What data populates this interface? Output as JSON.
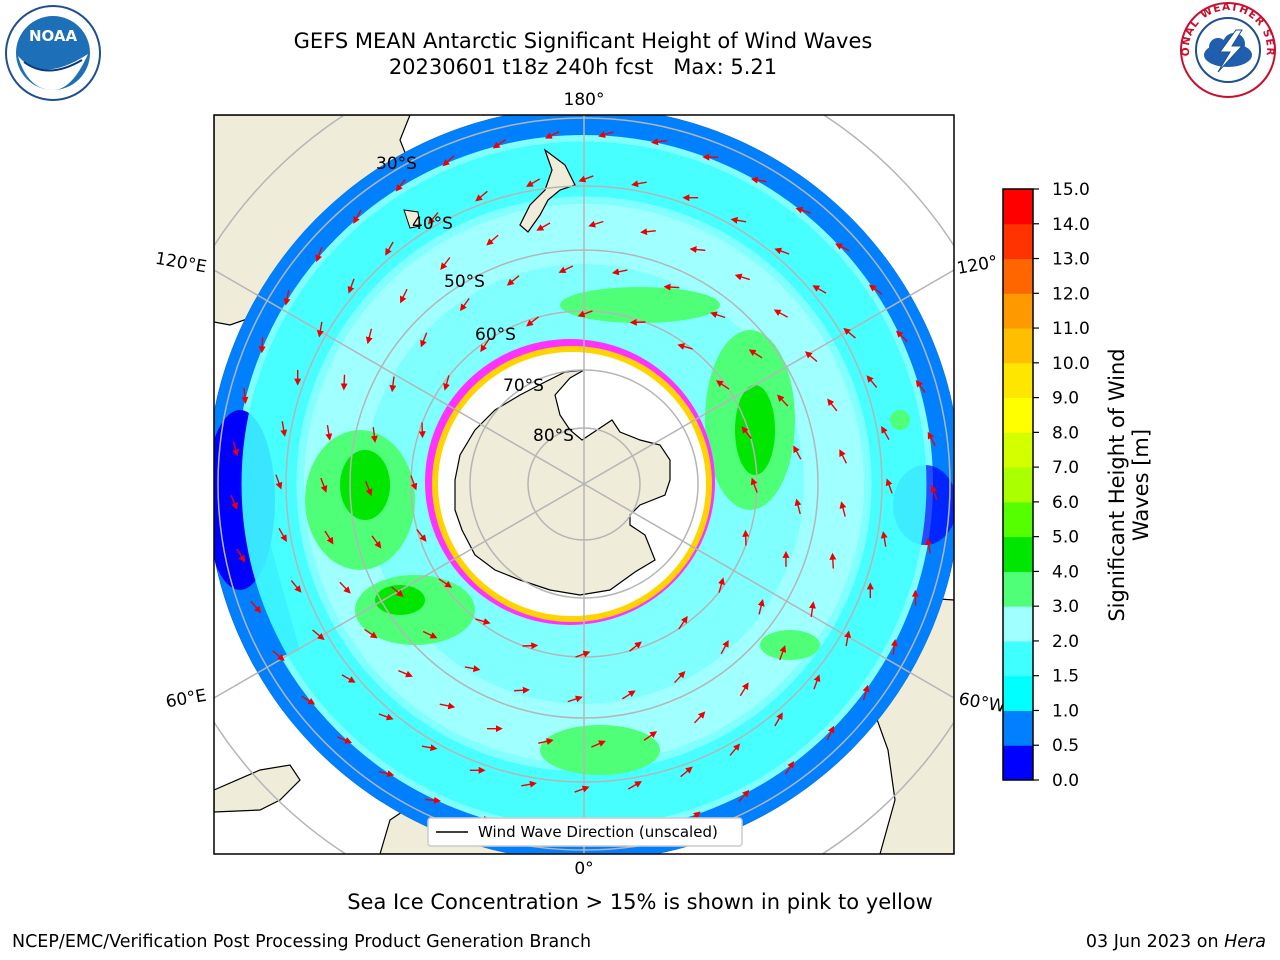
{
  "title_line1": "GEFS MEAN Antarctic Significant Height of Wind Waves",
  "title_line2": "20230601 t18z 240h fcst   Max: 5.21",
  "logos": {
    "left": {
      "text": "NOAA",
      "icon": "noaa-logo-icon"
    },
    "right": {
      "text": "NATIONAL WEATHER SERVICE",
      "icon": "nws-logo-icon"
    }
  },
  "map": {
    "projection": "south-polar-stereographic",
    "meridian_labels": {
      "top": "180°",
      "bottom": "0°",
      "left_upper": "120°E",
      "left_lower": "60°E",
      "right_upper": "120°",
      "right_lower": "60°W"
    },
    "latitude_labels": [
      "30°S",
      "40°S",
      "50°S",
      "60°S",
      "70°S",
      "80°S"
    ],
    "legend_label": "Wind Wave Direction (unscaled)",
    "colors": {
      "land": "#efecda",
      "ice": "#ffffff",
      "ice_edge": [
        "#ff33ff",
        "#ffd400"
      ],
      "vector": "#ee0000",
      "grid": "#b5b5b5"
    }
  },
  "colorbar": {
    "title": "Significant Height of Wind Waves [m]",
    "ticks": [
      "0.0",
      "0.5",
      "1.0",
      "1.5",
      "2.0",
      "3.0",
      "4.0",
      "5.0",
      "6.0",
      "7.0",
      "8.0",
      "9.0",
      "10.0",
      "11.0",
      "12.0",
      "13.0",
      "14.0",
      "15.0"
    ],
    "colors": [
      "#0000ff",
      "#0080ff",
      "#00ffff",
      "#40ffff",
      "#a0ffff",
      "#50ff78",
      "#00e600",
      "#55ff00",
      "#aaff00",
      "#d4ff00",
      "#ffff00",
      "#ffe600",
      "#ffbf00",
      "#ff9900",
      "#ff6600",
      "#ff3300",
      "#ff0000"
    ]
  },
  "caption": "Sea Ice Concentration > 15% is shown in pink to yellow",
  "footer_left": "NCEP/EMC/Verification Post Processing Product Generation Branch",
  "footer_date": "03 Jun 2023 on",
  "footer_host": "Hera"
}
